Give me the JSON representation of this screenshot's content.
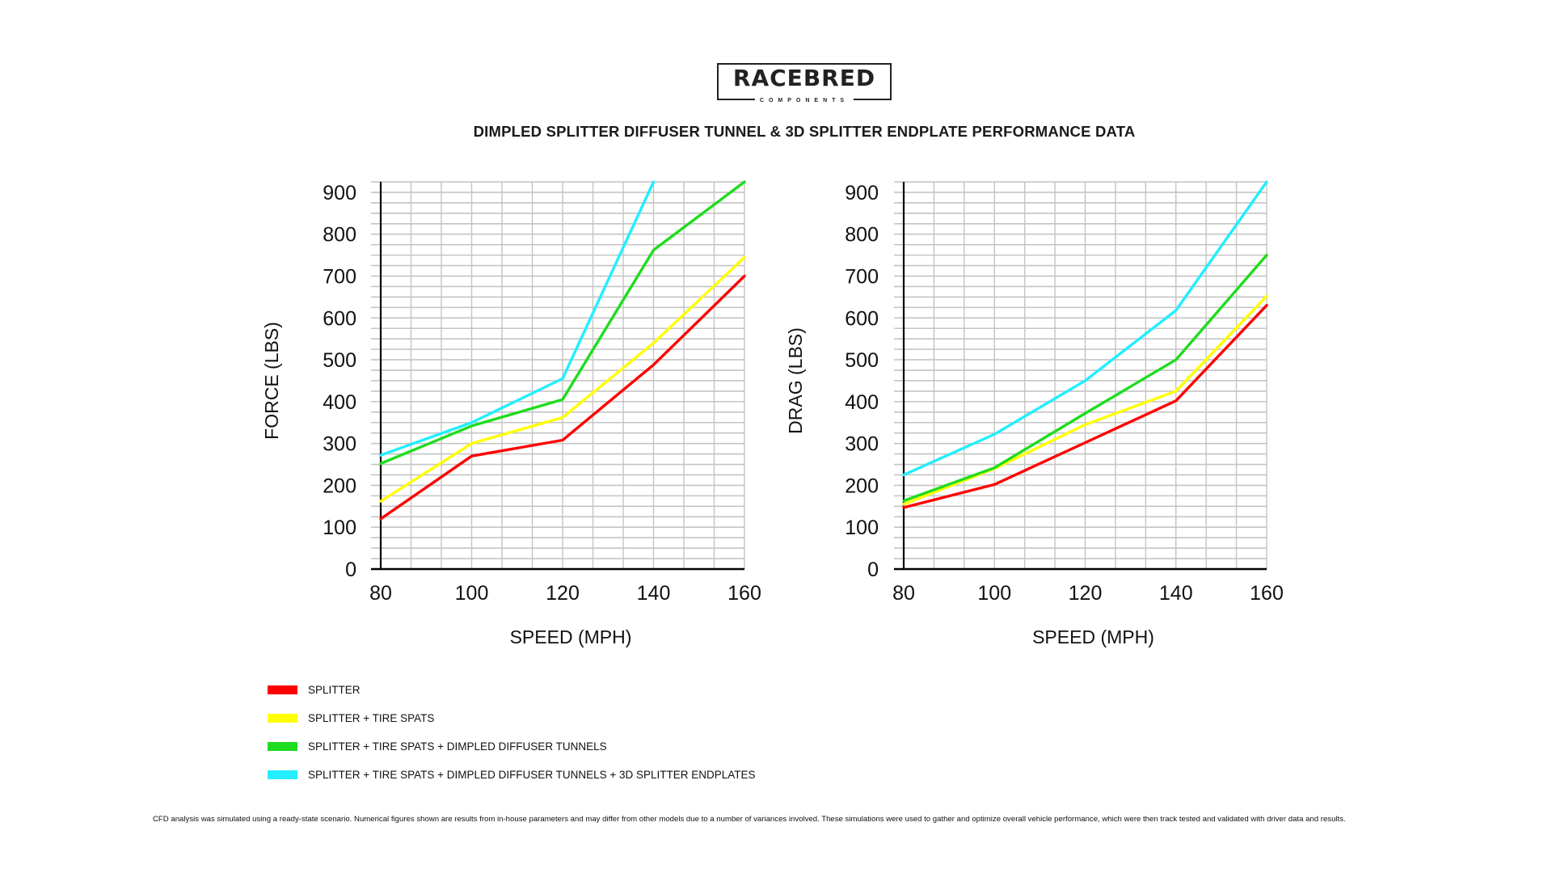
{
  "logo": {
    "name": "RACEBRED",
    "sub": "COMPONENTS"
  },
  "title": "DIMPLED SPLITTER DIFFUSER TUNNEL & 3D SPLITTER ENDPLATE PERFORMANCE DATA",
  "legend": [
    {
      "label": "SPLITTER",
      "color": "#ff0000"
    },
    {
      "label": "SPLITTER + TIRE SPATS",
      "color": "#ffff00"
    },
    {
      "label": "SPLITTER + TIRE SPATS + DIMPLED DIFFUSER TUNNELS",
      "color": "#1fdc1f"
    },
    {
      "label": "SPLITTER + TIRE SPATS + DIMPLED DIFFUSER TUNNELS + 3D SPLITTER ENDPLATES",
      "color": "#22eeff"
    }
  ],
  "footnote": "CFD analysis was simulated using a ready-state scenario. Numerical figures shown are results from in-house parameters and may differ from other models due to a number of variances involved. These simulations were used to gather and optimize overall vehicle performance, which were then track tested and validated with driver data and results.",
  "chart_data": [
    {
      "type": "line",
      "title": "",
      "xlabel": "SPEED (MPH)",
      "ylabel": "FORCE (LBS)",
      "x": [
        80,
        100,
        120,
        140,
        160
      ],
      "xticks": [
        "80",
        "100",
        "120",
        "140",
        "160"
      ],
      "yticks": [
        "0",
        "100",
        "200",
        "300",
        "400",
        "500",
        "600",
        "700",
        "800",
        "900"
      ],
      "xlim": [
        80,
        160
      ],
      "ylim": [
        0,
        925
      ],
      "grid": true,
      "series": [
        {
          "name": "SPLITTER",
          "values": [
            120,
            270,
            308,
            488,
            700
          ]
        },
        {
          "name": "SPLITTER + TIRE SPATS",
          "values": [
            162,
            300,
            362,
            540,
            745
          ]
        },
        {
          "name": "SPLITTER + TIRE SPATS + DIMPLED DIFFUSER TUNNELS",
          "values": [
            252,
            342,
            405,
            762,
            925
          ]
        },
        {
          "name": "SPLITTER + TIRE SPATS + DIMPLED DIFFUSER TUNNELS + 3D SPLITTER ENDPLATES",
          "values": [
            272,
            350,
            455,
            925,
            null
          ]
        }
      ]
    },
    {
      "type": "line",
      "title": "",
      "xlabel": "SPEED (MPH)",
      "ylabel": "DRAG (LBS)",
      "x": [
        80,
        100,
        120,
        140,
        160
      ],
      "xticks": [
        "80",
        "100",
        "120",
        "140",
        "160"
      ],
      "yticks": [
        "0",
        "100",
        "200",
        "300",
        "400",
        "500",
        "600",
        "700",
        "800",
        "900"
      ],
      "xlim": [
        80,
        160
      ],
      "ylim": [
        0,
        925
      ],
      "grid": true,
      "series": [
        {
          "name": "SPLITTER",
          "values": [
            147,
            202,
            302,
            402,
            630
          ]
        },
        {
          "name": "SPLITTER + TIRE SPATS",
          "values": [
            155,
            240,
            345,
            425,
            652
          ]
        },
        {
          "name": "SPLITTER + TIRE SPATS + DIMPLED DIFFUSER TUNNELS",
          "values": [
            163,
            242,
            372,
            500,
            750
          ]
        },
        {
          "name": "SPLITTER + TIRE SPATS + DIMPLED DIFFUSER TUNNELS + 3D SPLITTER ENDPLATES",
          "values": [
            225,
            322,
            450,
            618,
            925
          ]
        }
      ]
    }
  ]
}
